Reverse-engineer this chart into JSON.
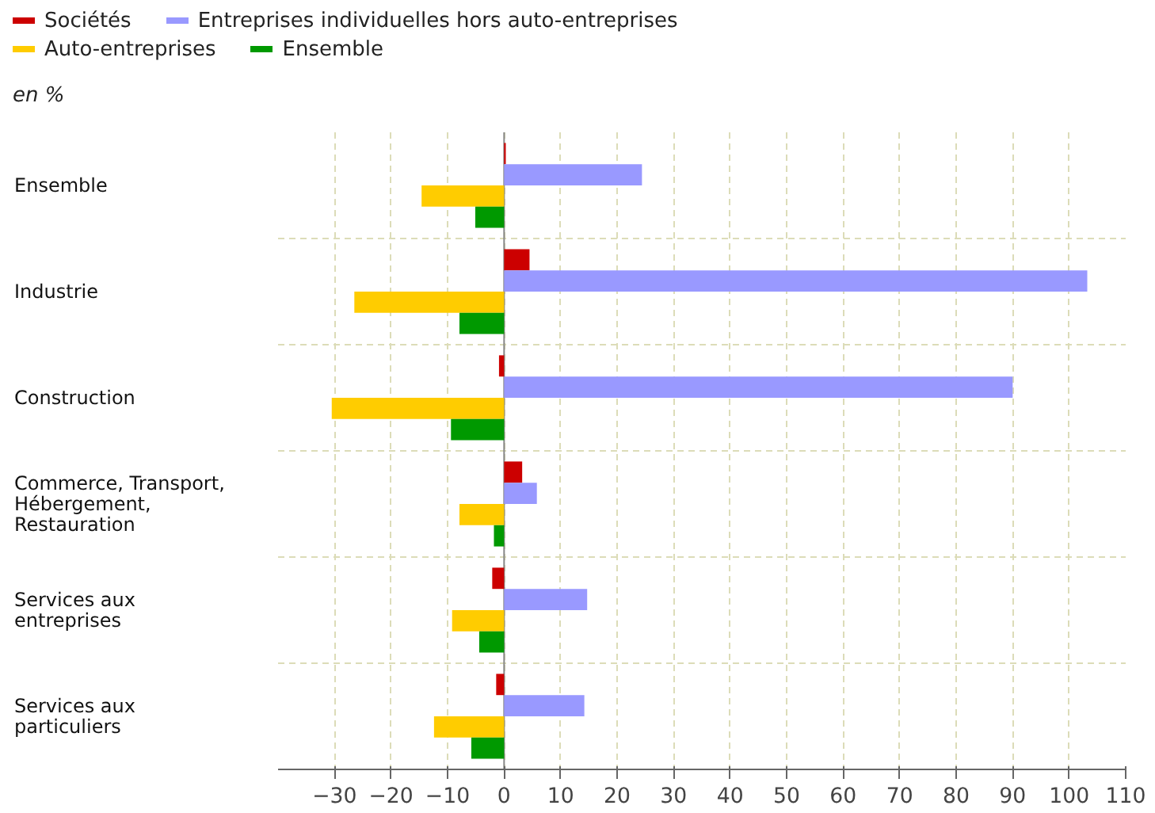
{
  "chart_data": {
    "type": "bar",
    "orientation": "horizontal",
    "subtitle": "en %",
    "categories": [
      "Ensemble",
      "Industrie",
      "Construction",
      "Commerce, Transport, Hébergement, Restauration",
      "Services aux entreprises",
      "Services aux particuliers"
    ],
    "series": [
      {
        "name": "Sociétés",
        "color": "#cc0000",
        "values": [
          0.3,
          4.5,
          -0.9,
          3.2,
          -2.1,
          -1.4
        ]
      },
      {
        "name": "Entreprises individuelles hors auto-entreprises",
        "color": "#9999ff",
        "values": [
          24.4,
          103.2,
          90,
          5.8,
          14.7,
          14.2
        ]
      },
      {
        "name": "Auto-entreprises",
        "color": "#ffcc00",
        "values": [
          -14.6,
          -26.5,
          -30.5,
          -7.9,
          -9.2,
          -12.4
        ]
      },
      {
        "name": "Ensemble",
        "color": "#009900",
        "values": [
          -5.1,
          -7.9,
          -9.4,
          -1.8,
          -4.4,
          -5.8
        ]
      }
    ],
    "xlim": [
      -40,
      110
    ],
    "xticks": [
      -30,
      -20,
      -10,
      0,
      10,
      20,
      30,
      40,
      50,
      60,
      70,
      80,
      90,
      100,
      110
    ],
    "grid": true,
    "legend": "top"
  }
}
